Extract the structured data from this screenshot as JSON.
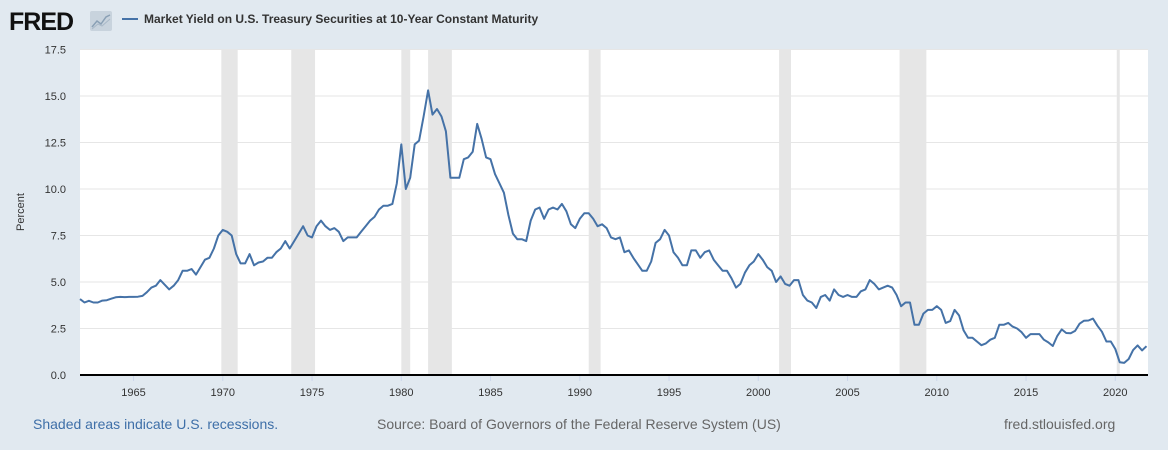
{
  "header": {
    "logo": "FRED",
    "logo_icon": "line-chart-icon"
  },
  "chart_data": {
    "type": "line",
    "title": "",
    "xlabel": "",
    "ylabel": "Percent",
    "ylim": [
      0,
      17.5
    ],
    "xlim": [
      "1962-01",
      "2021-11"
    ],
    "yticks": [
      "0.0",
      "2.5",
      "5.0",
      "7.5",
      "10.0",
      "12.5",
      "15.0",
      "17.5"
    ],
    "xticks": [
      "1965",
      "1970",
      "1975",
      "1980",
      "1985",
      "1990",
      "1995",
      "2000",
      "2005",
      "2010",
      "2015",
      "2020"
    ],
    "grid": true,
    "legend_placement": "top-left",
    "line_color": "#4572a7",
    "recession_color": "#e6e6e6",
    "series": [
      {
        "name": "Market Yield on U.S. Treasury Securities at 10-Year Constant Maturity",
        "start": "1962-01",
        "frequency": "quarterly",
        "values": [
          4.08,
          3.9,
          3.99,
          3.9,
          3.9,
          4.0,
          4.02,
          4.1,
          4.18,
          4.2,
          4.19,
          4.2,
          4.2,
          4.21,
          4.25,
          4.45,
          4.7,
          4.8,
          5.1,
          4.85,
          4.6,
          4.8,
          5.1,
          5.6,
          5.6,
          5.7,
          5.4,
          5.8,
          6.2,
          6.3,
          6.8,
          7.5,
          7.8,
          7.7,
          7.5,
          6.5,
          6.0,
          6.0,
          6.5,
          5.9,
          6.05,
          6.1,
          6.3,
          6.3,
          6.6,
          6.8,
          7.2,
          6.8,
          7.2,
          7.6,
          8.0,
          7.5,
          7.4,
          8.0,
          8.3,
          8.0,
          7.8,
          7.9,
          7.7,
          7.2,
          7.4,
          7.4,
          7.4,
          7.7,
          8.0,
          8.3,
          8.5,
          8.9,
          9.1,
          9.1,
          9.2,
          10.3,
          12.4,
          10.0,
          10.6,
          12.4,
          12.6,
          13.9,
          15.3,
          14.0,
          14.3,
          13.9,
          13.1,
          10.6,
          10.6,
          10.6,
          11.6,
          11.7,
          12.0,
          13.5,
          12.7,
          11.7,
          11.6,
          10.8,
          10.3,
          9.8,
          8.6,
          7.6,
          7.3,
          7.3,
          7.2,
          8.3,
          8.9,
          9.0,
          8.4,
          8.9,
          9.0,
          8.9,
          9.2,
          8.8,
          8.1,
          7.9,
          8.4,
          8.7,
          8.7,
          8.4,
          8.0,
          8.1,
          7.9,
          7.4,
          7.3,
          7.4,
          6.6,
          6.7,
          6.3,
          5.95,
          5.6,
          5.6,
          6.1,
          7.1,
          7.3,
          7.8,
          7.5,
          6.6,
          6.3,
          5.9,
          5.9,
          6.7,
          6.7,
          6.3,
          6.6,
          6.7,
          6.2,
          5.9,
          5.6,
          5.6,
          5.2,
          4.7,
          4.9,
          5.5,
          5.9,
          6.1,
          6.5,
          6.2,
          5.8,
          5.6,
          5.0,
          5.3,
          4.9,
          4.8,
          5.1,
          5.1,
          4.3,
          4.0,
          3.9,
          3.6,
          4.2,
          4.3,
          4.0,
          4.6,
          4.3,
          4.2,
          4.3,
          4.2,
          4.2,
          4.5,
          4.6,
          5.1,
          4.9,
          4.6,
          4.7,
          4.8,
          4.7,
          4.3,
          3.7,
          3.9,
          3.9,
          2.7,
          2.7,
          3.3,
          3.5,
          3.5,
          3.7,
          3.5,
          2.8,
          2.9,
          3.5,
          3.2,
          2.4,
          2.0,
          2.0,
          1.8,
          1.6,
          1.7,
          1.9,
          2.0,
          2.7,
          2.7,
          2.8,
          2.6,
          2.5,
          2.3,
          2.0,
          2.2,
          2.2,
          2.2,
          1.9,
          1.75,
          1.56,
          2.1,
          2.45,
          2.26,
          2.24,
          2.37,
          2.76,
          2.92,
          2.93,
          3.03,
          2.65,
          2.33,
          1.8,
          1.8,
          1.4,
          0.69,
          0.65,
          0.86,
          1.34,
          1.59,
          1.32,
          1.55
        ]
      }
    ],
    "recessions": [
      [
        "1969-12",
        "1970-11"
      ],
      [
        "1973-11",
        "1975-03"
      ],
      [
        "1980-01",
        "1980-07"
      ],
      [
        "1981-07",
        "1982-11"
      ],
      [
        "1990-07",
        "1991-03"
      ],
      [
        "2001-03",
        "2001-11"
      ],
      [
        "2007-12",
        "2009-06"
      ],
      [
        "2020-02",
        "2020-04"
      ]
    ]
  },
  "footer": {
    "recession_note": "Shaded areas indicate U.S. recessions.",
    "source": "Source: Board of Governors of the Federal Reserve System (US)",
    "site": "fred.stlouisfed.org"
  }
}
